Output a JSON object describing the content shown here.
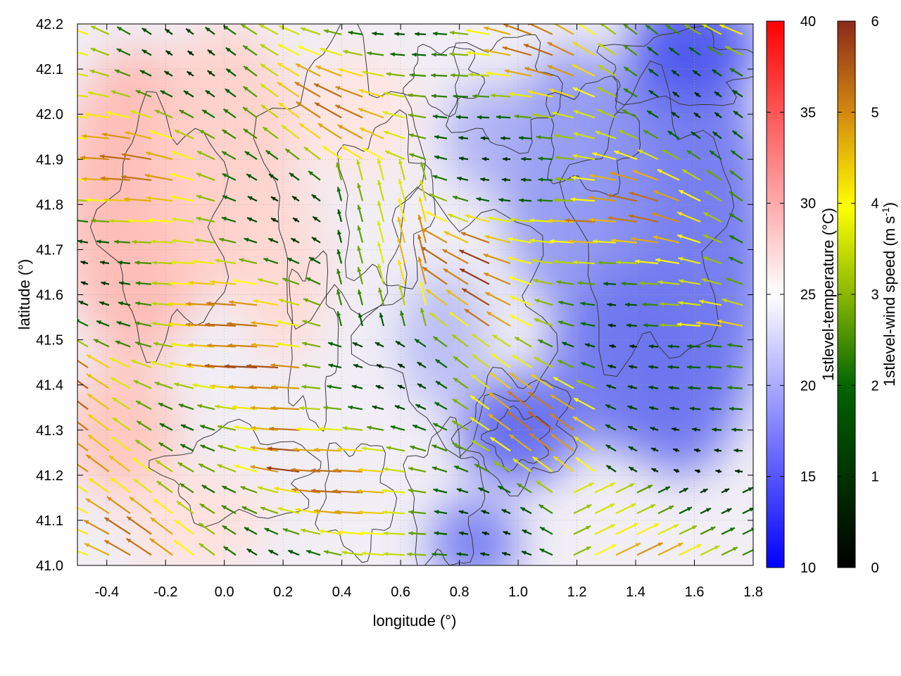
{
  "chart_data": {
    "type": "heatmap",
    "title": "",
    "xlabel": "longitude (°)",
    "ylabel": "latitude (°)",
    "xlim": [
      -0.5,
      1.8
    ],
    "ylim": [
      41.0,
      42.2
    ],
    "x_ticks": [
      "-0.4",
      "-0.2",
      "0.0",
      "0.2",
      "0.4",
      "0.6",
      "0.8",
      "1.0",
      "1.2",
      "1.4",
      "1.6",
      "1.8"
    ],
    "y_ticks": [
      "41.0",
      "41.1",
      "41.2",
      "41.3",
      "41.4",
      "41.5",
      "41.6",
      "41.7",
      "41.8",
      "41.9",
      "42.0",
      "42.1",
      "42.2"
    ],
    "grid": true,
    "overlays": [
      "wind vectors colored by speed",
      "terrain contour lines"
    ],
    "colorbars": [
      {
        "label": "1stlevel-temperature (°C)",
        "range": [
          10,
          40
        ],
        "ticks": [
          "10",
          "15",
          "20",
          "25",
          "30",
          "35",
          "40"
        ],
        "colors": [
          "#0000ff",
          "#ffffff",
          "#ff0000"
        ]
      },
      {
        "label": "1stlevel-wind speed (m s",
        "label_sup": "-1",
        "label_end": ")",
        "range": [
          0,
          6
        ],
        "ticks": [
          "0",
          "1",
          "2",
          "3",
          "4",
          "5",
          "6"
        ],
        "colors": [
          "#000000",
          "#006400",
          "#8ab800",
          "#ffff00",
          "#d48a10",
          "#8b2a1a"
        ]
      }
    ]
  }
}
